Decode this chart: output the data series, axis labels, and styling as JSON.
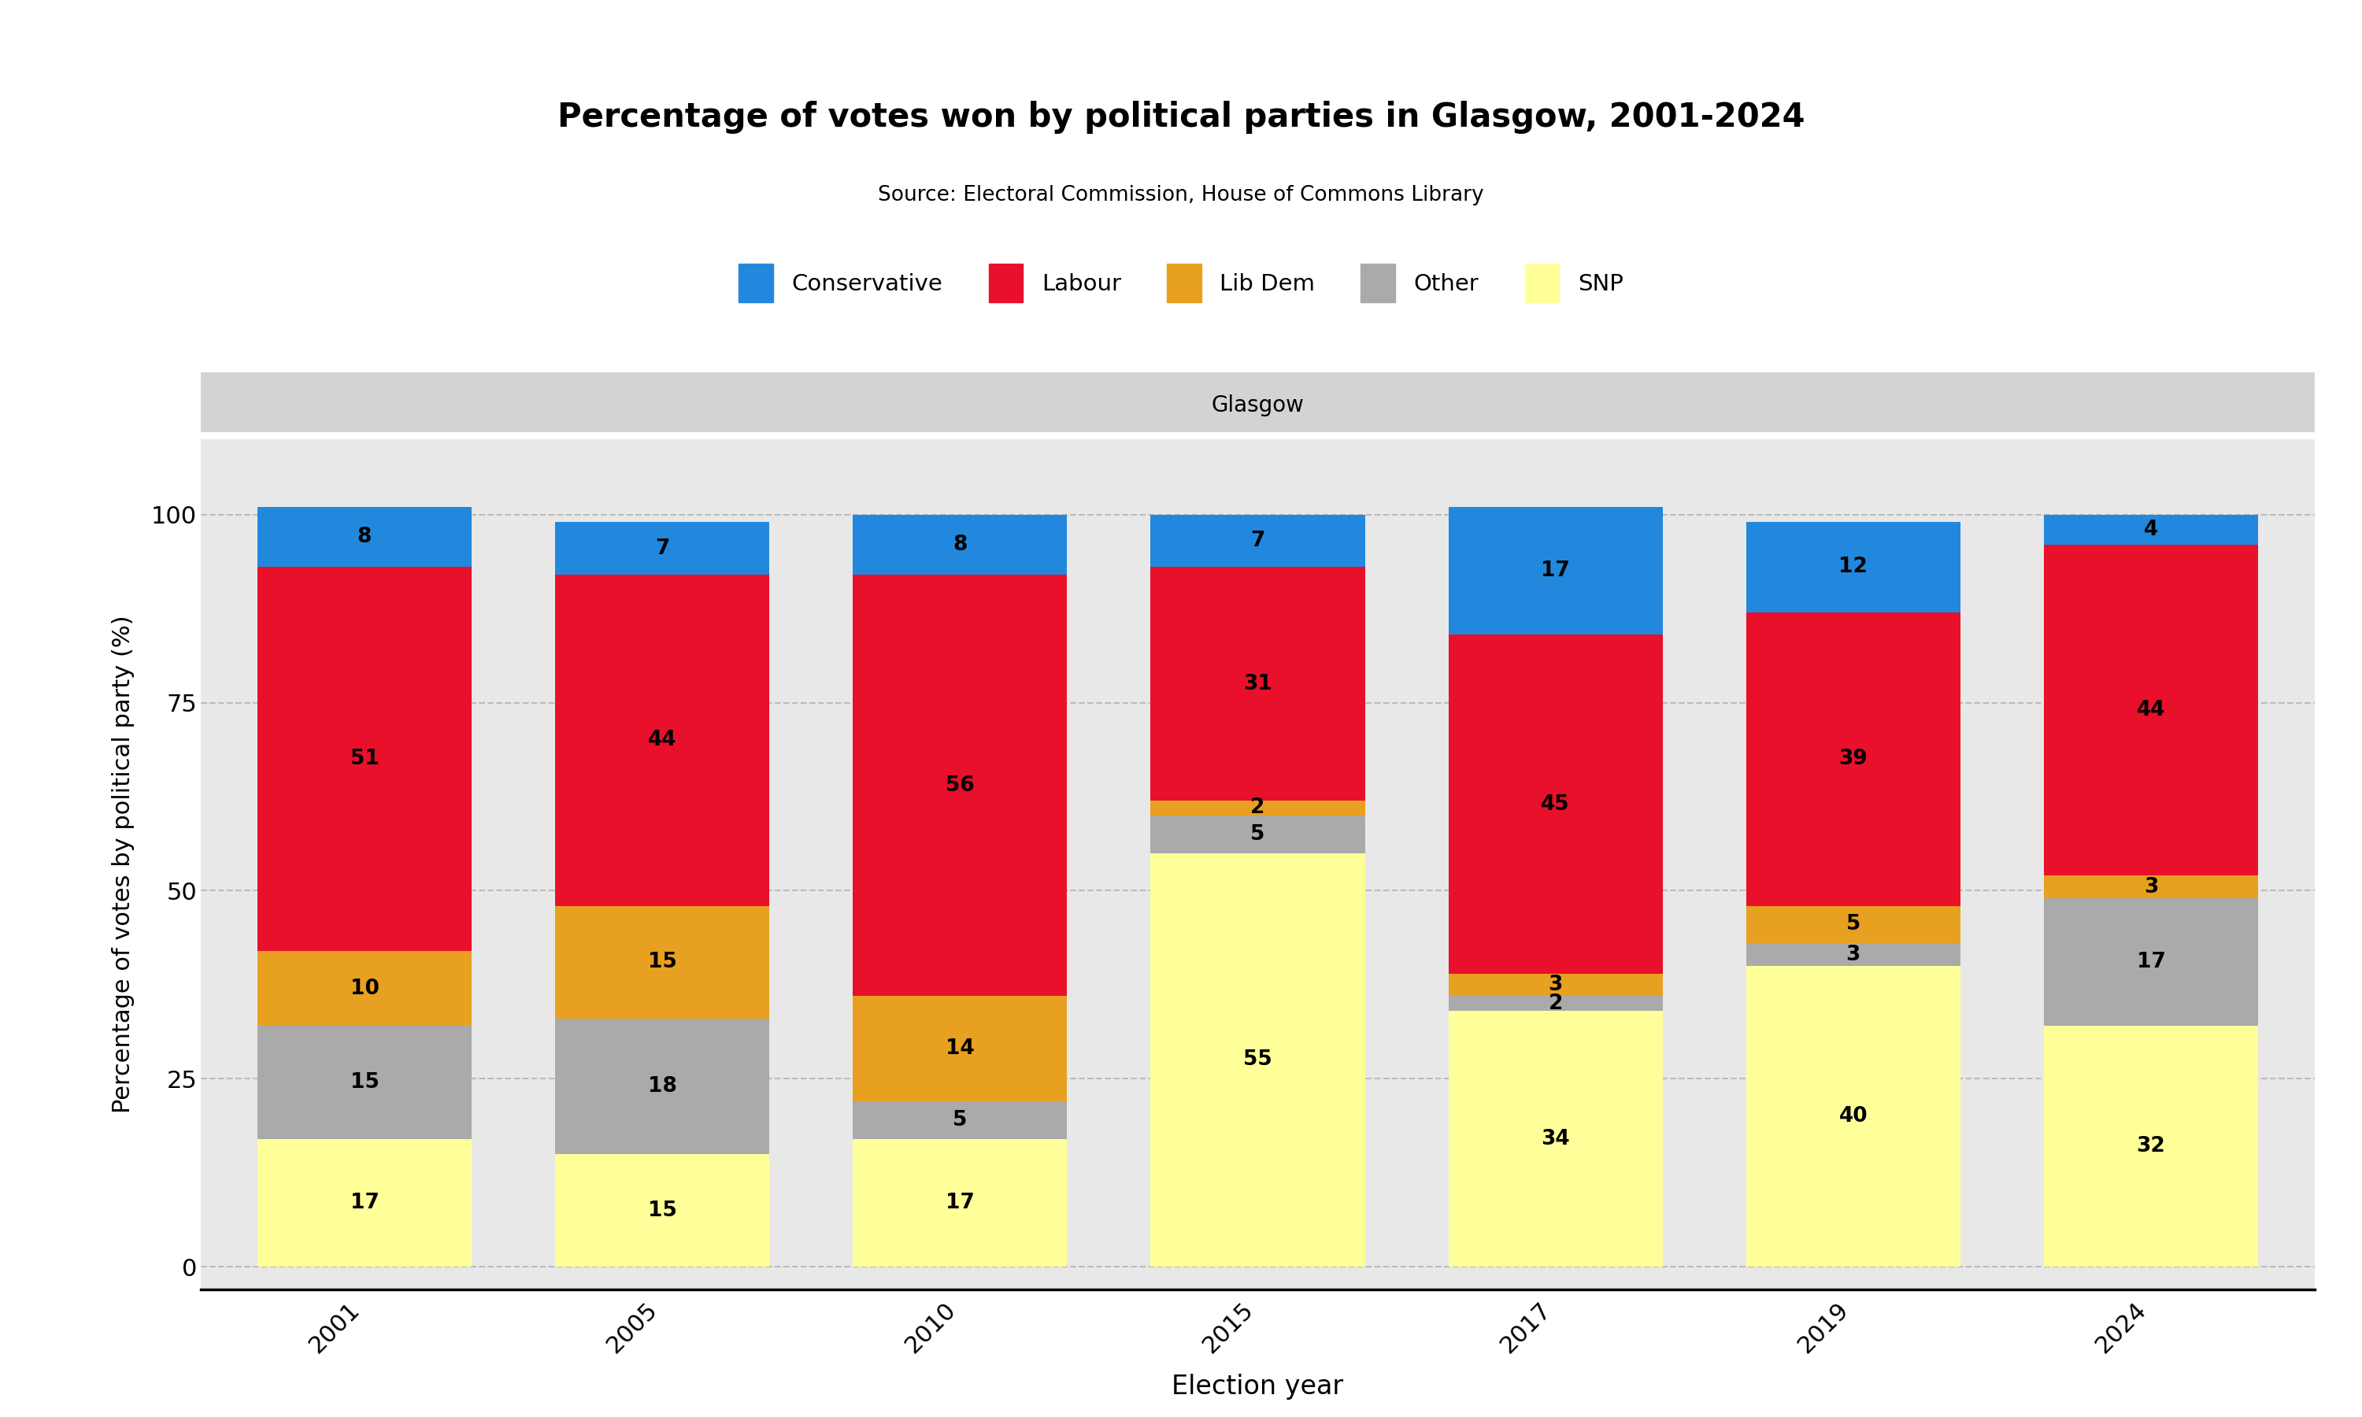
{
  "title": "Percentage of votes won by political parties in Glasgow, 2001-2024",
  "source": "Source: Electoral Commission, House of Commons Library",
  "region_label": "Glasgow",
  "xlabel": "Election year",
  "ylabel": "Percentage of votes by political party (%)",
  "years": [
    2001,
    2005,
    2010,
    2015,
    2017,
    2019,
    2024
  ],
  "parties": [
    "SNP",
    "Other",
    "Lib Dem",
    "Labour",
    "Conservative"
  ],
  "colors": {
    "SNP": "#FFFF99",
    "Other": "#AAAAAA",
    "Lib Dem": "#E8A020",
    "Labour": "#E8102A",
    "Conservative": "#2288DD"
  },
  "legend_order": [
    "Conservative",
    "Labour",
    "Lib Dem",
    "Other",
    "SNP"
  ],
  "data": {
    "2001": {
      "SNP": 17,
      "Other": 15,
      "Lib Dem": 10,
      "Labour": 51,
      "Conservative": 8
    },
    "2005": {
      "SNP": 15,
      "Other": 18,
      "Lib Dem": 15,
      "Labour": 44,
      "Conservative": 7
    },
    "2010": {
      "SNP": 17,
      "Other": 5,
      "Lib Dem": 14,
      "Labour": 56,
      "Conservative": 8
    },
    "2015": {
      "SNP": 55,
      "Other": 5,
      "Lib Dem": 2,
      "Labour": 31,
      "Conservative": 7
    },
    "2017": {
      "SNP": 34,
      "Other": 2,
      "Lib Dem": 3,
      "Labour": 45,
      "Conservative": 17
    },
    "2019": {
      "SNP": 40,
      "Other": 3,
      "Lib Dem": 5,
      "Labour": 39,
      "Conservative": 12
    },
    "2024": {
      "SNP": 32,
      "Other": 17,
      "Lib Dem": 3,
      "Labour": 44,
      "Conservative": 4
    }
  },
  "ylim": [
    -3,
    110
  ],
  "yticks": [
    0,
    25,
    50,
    75,
    100
  ],
  "plot_bg_color": "#E8E8E8",
  "header_bg_color": "#D3D3D3",
  "grid_color": "#BBBBBB",
  "bar_width": 0.72
}
